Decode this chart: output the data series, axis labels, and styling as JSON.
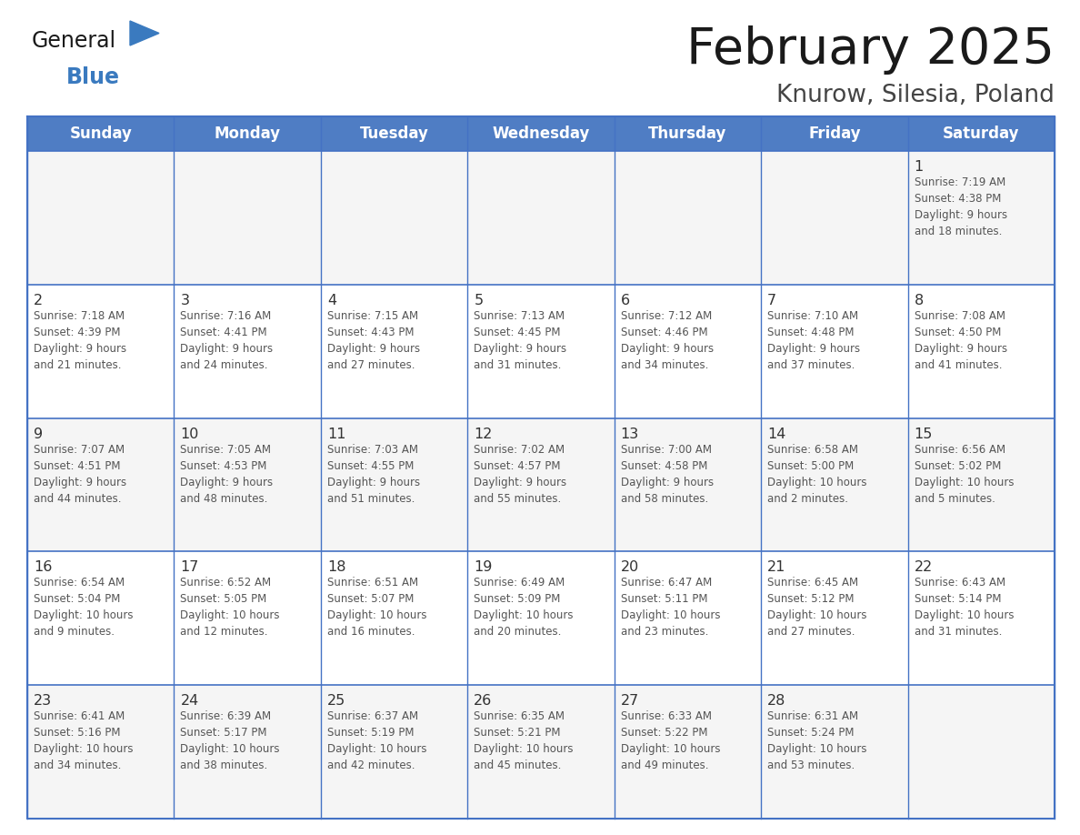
{
  "title": "February 2025",
  "subtitle": "Knurow, Silesia, Poland",
  "days_of_week": [
    "Sunday",
    "Monday",
    "Tuesday",
    "Wednesday",
    "Thursday",
    "Friday",
    "Saturday"
  ],
  "header_bg": "#4f7dc4",
  "header_text_color": "#FFFFFF",
  "cell_bg_odd": "#F5F5F5",
  "cell_bg_even": "#FFFFFF",
  "grid_line_color": "#4472C4",
  "title_color": "#1a1a1a",
  "subtitle_color": "#444444",
  "day_num_color": "#333333",
  "cell_text_color": "#555555",
  "logo_general_color": "#1a1a1a",
  "logo_blue_color": "#3a7abf",
  "weeks": [
    [
      {
        "day": null,
        "info": null
      },
      {
        "day": null,
        "info": null
      },
      {
        "day": null,
        "info": null
      },
      {
        "day": null,
        "info": null
      },
      {
        "day": null,
        "info": null
      },
      {
        "day": null,
        "info": null
      },
      {
        "day": 1,
        "info": "Sunrise: 7:19 AM\nSunset: 4:38 PM\nDaylight: 9 hours\nand 18 minutes."
      }
    ],
    [
      {
        "day": 2,
        "info": "Sunrise: 7:18 AM\nSunset: 4:39 PM\nDaylight: 9 hours\nand 21 minutes."
      },
      {
        "day": 3,
        "info": "Sunrise: 7:16 AM\nSunset: 4:41 PM\nDaylight: 9 hours\nand 24 minutes."
      },
      {
        "day": 4,
        "info": "Sunrise: 7:15 AM\nSunset: 4:43 PM\nDaylight: 9 hours\nand 27 minutes."
      },
      {
        "day": 5,
        "info": "Sunrise: 7:13 AM\nSunset: 4:45 PM\nDaylight: 9 hours\nand 31 minutes."
      },
      {
        "day": 6,
        "info": "Sunrise: 7:12 AM\nSunset: 4:46 PM\nDaylight: 9 hours\nand 34 minutes."
      },
      {
        "day": 7,
        "info": "Sunrise: 7:10 AM\nSunset: 4:48 PM\nDaylight: 9 hours\nand 37 minutes."
      },
      {
        "day": 8,
        "info": "Sunrise: 7:08 AM\nSunset: 4:50 PM\nDaylight: 9 hours\nand 41 minutes."
      }
    ],
    [
      {
        "day": 9,
        "info": "Sunrise: 7:07 AM\nSunset: 4:51 PM\nDaylight: 9 hours\nand 44 minutes."
      },
      {
        "day": 10,
        "info": "Sunrise: 7:05 AM\nSunset: 4:53 PM\nDaylight: 9 hours\nand 48 minutes."
      },
      {
        "day": 11,
        "info": "Sunrise: 7:03 AM\nSunset: 4:55 PM\nDaylight: 9 hours\nand 51 minutes."
      },
      {
        "day": 12,
        "info": "Sunrise: 7:02 AM\nSunset: 4:57 PM\nDaylight: 9 hours\nand 55 minutes."
      },
      {
        "day": 13,
        "info": "Sunrise: 7:00 AM\nSunset: 4:58 PM\nDaylight: 9 hours\nand 58 minutes."
      },
      {
        "day": 14,
        "info": "Sunrise: 6:58 AM\nSunset: 5:00 PM\nDaylight: 10 hours\nand 2 minutes."
      },
      {
        "day": 15,
        "info": "Sunrise: 6:56 AM\nSunset: 5:02 PM\nDaylight: 10 hours\nand 5 minutes."
      }
    ],
    [
      {
        "day": 16,
        "info": "Sunrise: 6:54 AM\nSunset: 5:04 PM\nDaylight: 10 hours\nand 9 minutes."
      },
      {
        "day": 17,
        "info": "Sunrise: 6:52 AM\nSunset: 5:05 PM\nDaylight: 10 hours\nand 12 minutes."
      },
      {
        "day": 18,
        "info": "Sunrise: 6:51 AM\nSunset: 5:07 PM\nDaylight: 10 hours\nand 16 minutes."
      },
      {
        "day": 19,
        "info": "Sunrise: 6:49 AM\nSunset: 5:09 PM\nDaylight: 10 hours\nand 20 minutes."
      },
      {
        "day": 20,
        "info": "Sunrise: 6:47 AM\nSunset: 5:11 PM\nDaylight: 10 hours\nand 23 minutes."
      },
      {
        "day": 21,
        "info": "Sunrise: 6:45 AM\nSunset: 5:12 PM\nDaylight: 10 hours\nand 27 minutes."
      },
      {
        "day": 22,
        "info": "Sunrise: 6:43 AM\nSunset: 5:14 PM\nDaylight: 10 hours\nand 31 minutes."
      }
    ],
    [
      {
        "day": 23,
        "info": "Sunrise: 6:41 AM\nSunset: 5:16 PM\nDaylight: 10 hours\nand 34 minutes."
      },
      {
        "day": 24,
        "info": "Sunrise: 6:39 AM\nSunset: 5:17 PM\nDaylight: 10 hours\nand 38 minutes."
      },
      {
        "day": 25,
        "info": "Sunrise: 6:37 AM\nSunset: 5:19 PM\nDaylight: 10 hours\nand 42 minutes."
      },
      {
        "day": 26,
        "info": "Sunrise: 6:35 AM\nSunset: 5:21 PM\nDaylight: 10 hours\nand 45 minutes."
      },
      {
        "day": 27,
        "info": "Sunrise: 6:33 AM\nSunset: 5:22 PM\nDaylight: 10 hours\nand 49 minutes."
      },
      {
        "day": 28,
        "info": "Sunrise: 6:31 AM\nSunset: 5:24 PM\nDaylight: 10 hours\nand 53 minutes."
      },
      {
        "day": null,
        "info": null
      }
    ]
  ]
}
